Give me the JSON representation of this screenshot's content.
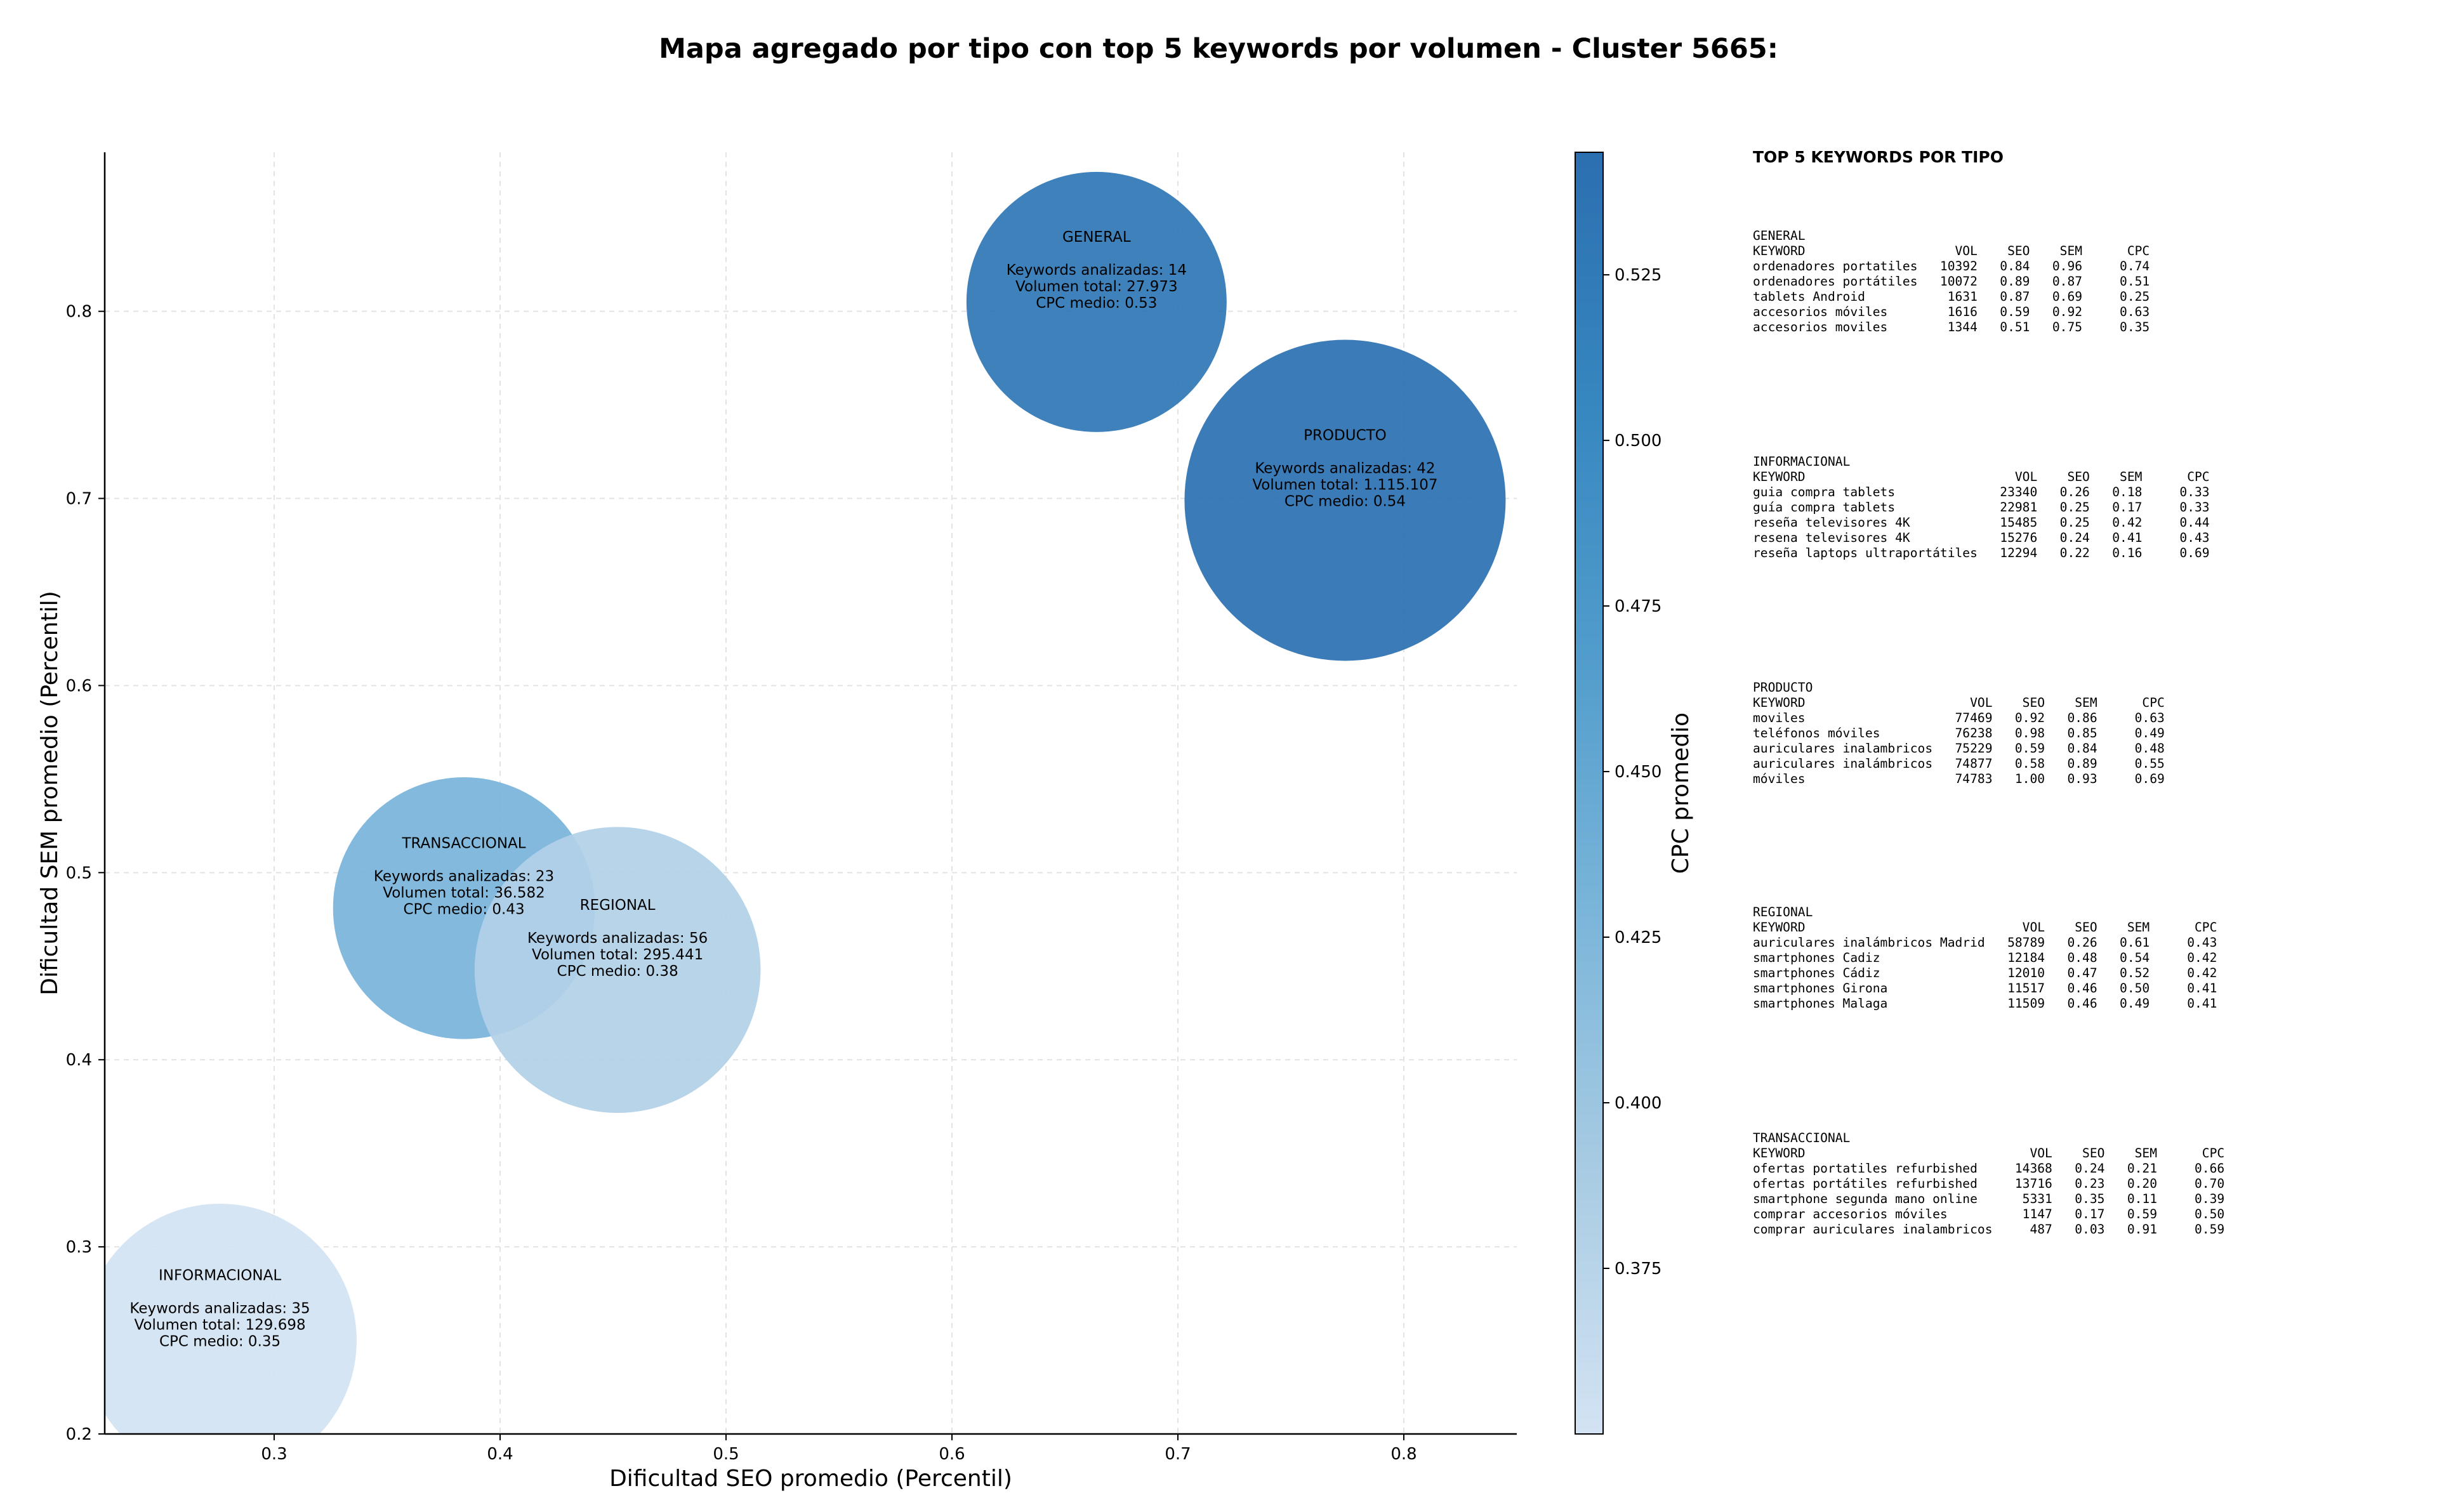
{
  "chart_data": {
    "type": "scatter",
    "title": "Mapa agregado por tipo con top 5 keywords por volumen - Cluster 5665:",
    "xlabel": "Dificultad SEO promedio (Percentil)",
    "ylabel": "Dificultad SEM promedio (Percentil)",
    "xlim": [
      0.225,
      0.85
    ],
    "ylim": [
      0.2,
      0.885
    ],
    "xticks": [
      0.3,
      0.4,
      0.5,
      0.6,
      0.7,
      0.8
    ],
    "yticks": [
      0.2,
      0.3,
      0.4,
      0.5,
      0.6,
      0.7,
      0.8
    ],
    "xtick_labels": [
      "0.3",
      "0.4",
      "0.5",
      "0.6",
      "0.7",
      "0.8"
    ],
    "ytick_labels": [
      "0.2",
      "0.3",
      "0.4",
      "0.5",
      "0.6",
      "0.7",
      "0.8"
    ],
    "grid": true,
    "colorbar": {
      "label": "CPC promedio",
      "range": [
        0.35,
        0.5435
      ],
      "ticks": [
        0.375,
        0.4,
        0.425,
        0.45,
        0.475,
        0.5,
        0.525
      ],
      "tick_labels": [
        "0.375",
        "0.400",
        "0.425",
        "0.450",
        "0.475",
        "0.500",
        "0.525"
      ],
      "colormap": [
        "#d3e3f3",
        "#a9cce3",
        "#7cb6da",
        "#529dcc",
        "#3787c0",
        "#2b6fb0"
      ]
    },
    "points": [
      {
        "type": "GENERAL",
        "x": 0.664,
        "y": 0.805,
        "cpc": 0.53,
        "volume": 27973,
        "keywords": 14,
        "lines": [
          "GENERAL",
          "",
          "Keywords analizadas: 14",
          "Volumen total: 27.973",
          "CPC medio: 0.53"
        ]
      },
      {
        "type": "PRODUCTO",
        "x": 0.774,
        "y": 0.699,
        "cpc": 0.54,
        "volume": 1115107,
        "keywords": 42,
        "lines": [
          "PRODUCTO",
          "",
          "Keywords analizadas: 42",
          "Volumen total: 1.115.107",
          "CPC medio: 0.54"
        ]
      },
      {
        "type": "TRANSACCIONAL",
        "x": 0.384,
        "y": 0.481,
        "cpc": 0.43,
        "volume": 36582,
        "keywords": 23,
        "lines": [
          "TRANSACCIONAL",
          "",
          "Keywords analizadas: 23",
          "Volumen total: 36.582",
          "CPC medio: 0.43"
        ]
      },
      {
        "type": "REGIONAL",
        "x": 0.452,
        "y": 0.448,
        "cpc": 0.38,
        "volume": 295441,
        "keywords": 56,
        "lines": [
          "REGIONAL",
          "",
          "Keywords analizadas: 56",
          "Volumen total: 295.441",
          "CPC medio: 0.38"
        ]
      },
      {
        "type": "INFORMACIONAL",
        "x": 0.276,
        "y": 0.25,
        "cpc": 0.35,
        "volume": 129698,
        "keywords": 35,
        "lines": [
          "INFORMACIONAL",
          "",
          "Keywords analizadas: 35",
          "Volumen total: 129.698",
          "CPC medio: 0.35"
        ]
      }
    ]
  },
  "panel": {
    "title": "TOP 5 KEYWORDS POR TIPO",
    "blocks": [
      {
        "type": "GENERAL",
        "header": "KEYWORD                    VOL    SEO    SEM      CPC",
        "rows": [
          "ordenadores portatiles   10392   0.84   0.96     0.74",
          "ordenadores portátiles   10072   0.89   0.87     0.51",
          "tablets Android           1631   0.87   0.69     0.25",
          "accesorios móviles        1616   0.59   0.92     0.63",
          "accesorios moviles        1344   0.51   0.75     0.35"
        ]
      },
      {
        "type": "INFORMACIONAL",
        "header": "KEYWORD                            VOL    SEO    SEM      CPC",
        "rows": [
          "guia compra tablets              23340   0.26   0.18     0.33",
          "guía compra tablets              22981   0.25   0.17     0.33",
          "reseña televisores 4K            15485   0.25   0.42     0.44",
          "resena televisores 4K            15276   0.24   0.41     0.43",
          "reseña laptops ultraportátiles   12294   0.22   0.16     0.69"
        ]
      },
      {
        "type": "PRODUCTO",
        "header": "KEYWORD                      VOL    SEO    SEM      CPC",
        "rows": [
          "moviles                    77469   0.92   0.86     0.63",
          "teléfonos móviles          76238   0.98   0.85     0.49",
          "auriculares inalambricos   75229   0.59   0.84     0.48",
          "auriculares inalámbricos   74877   0.58   0.89     0.55",
          "móviles                    74783   1.00   0.93     0.69"
        ]
      },
      {
        "type": "REGIONAL",
        "header": "KEYWORD                             VOL    SEO    SEM      CPC",
        "rows": [
          "auriculares inalámbricos Madrid   58789   0.26   0.61     0.43",
          "smartphones Cadiz                 12184   0.48   0.54     0.42",
          "smartphones Cádiz                 12010   0.47   0.52     0.42",
          "smartphones Girona                11517   0.46   0.50     0.41",
          "smartphones Malaga                11509   0.46   0.49     0.41"
        ]
      },
      {
        "type": "TRANSACCIONAL",
        "header": "KEYWORD                              VOL    SEO    SEM      CPC",
        "rows": [
          "ofertas portatiles refurbished     14368   0.24   0.21     0.66",
          "ofertas portátiles refurbished     13716   0.23   0.20     0.70",
          "smartphone segunda mano online      5331   0.35   0.11     0.39",
          "comprar accesorios móviles          1147   0.17   0.59     0.50",
          "comprar auriculares inalambricos     487   0.03   0.91     0.59"
        ]
      }
    ]
  }
}
